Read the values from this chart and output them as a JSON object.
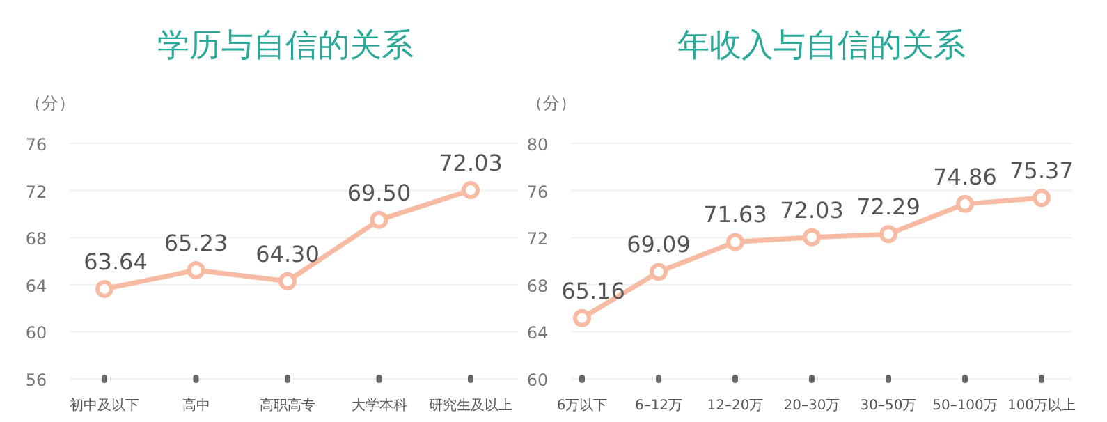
{
  "chart_data": [
    {
      "type": "line",
      "title": "学历与自信的关系",
      "ylabel": "（分）",
      "categories": [
        "初中及以下",
        "高中",
        "高职高专",
        "大学本科",
        "研究生及以上"
      ],
      "series": [
        {
          "color": "#f7bba3",
          "values": [
            63.64,
            65.23,
            64.3,
            69.5,
            72.03
          ],
          "value_labels": [
            "63.64",
            "65.23",
            "64.30",
            "69.50",
            "72.03"
          ]
        }
      ],
      "ylim": [
        56,
        76
      ],
      "yticks": [
        56,
        60,
        64,
        68,
        72,
        76
      ],
      "grid": "y",
      "marker": "circle"
    },
    {
      "type": "line",
      "title": "年收入与自信的关系",
      "ylabel": "（分）",
      "categories": [
        "6万以下",
        "6–12万",
        "12–20万",
        "20–30万",
        "30–50万",
        "50–100万",
        "100万以上"
      ],
      "series": [
        {
          "color": "#f7bba3",
          "values": [
            65.16,
            69.09,
            71.63,
            72.03,
            72.29,
            74.86,
            75.37
          ],
          "value_labels": [
            "65.16",
            "69.09",
            "71.63",
            "72.03",
            "72.29",
            "74.86",
            "75.37"
          ]
        }
      ],
      "ylim": [
        60,
        80
      ],
      "yticks": [
        60,
        64,
        68,
        72,
        76,
        80
      ],
      "grid": "y",
      "marker": "circle"
    }
  ]
}
